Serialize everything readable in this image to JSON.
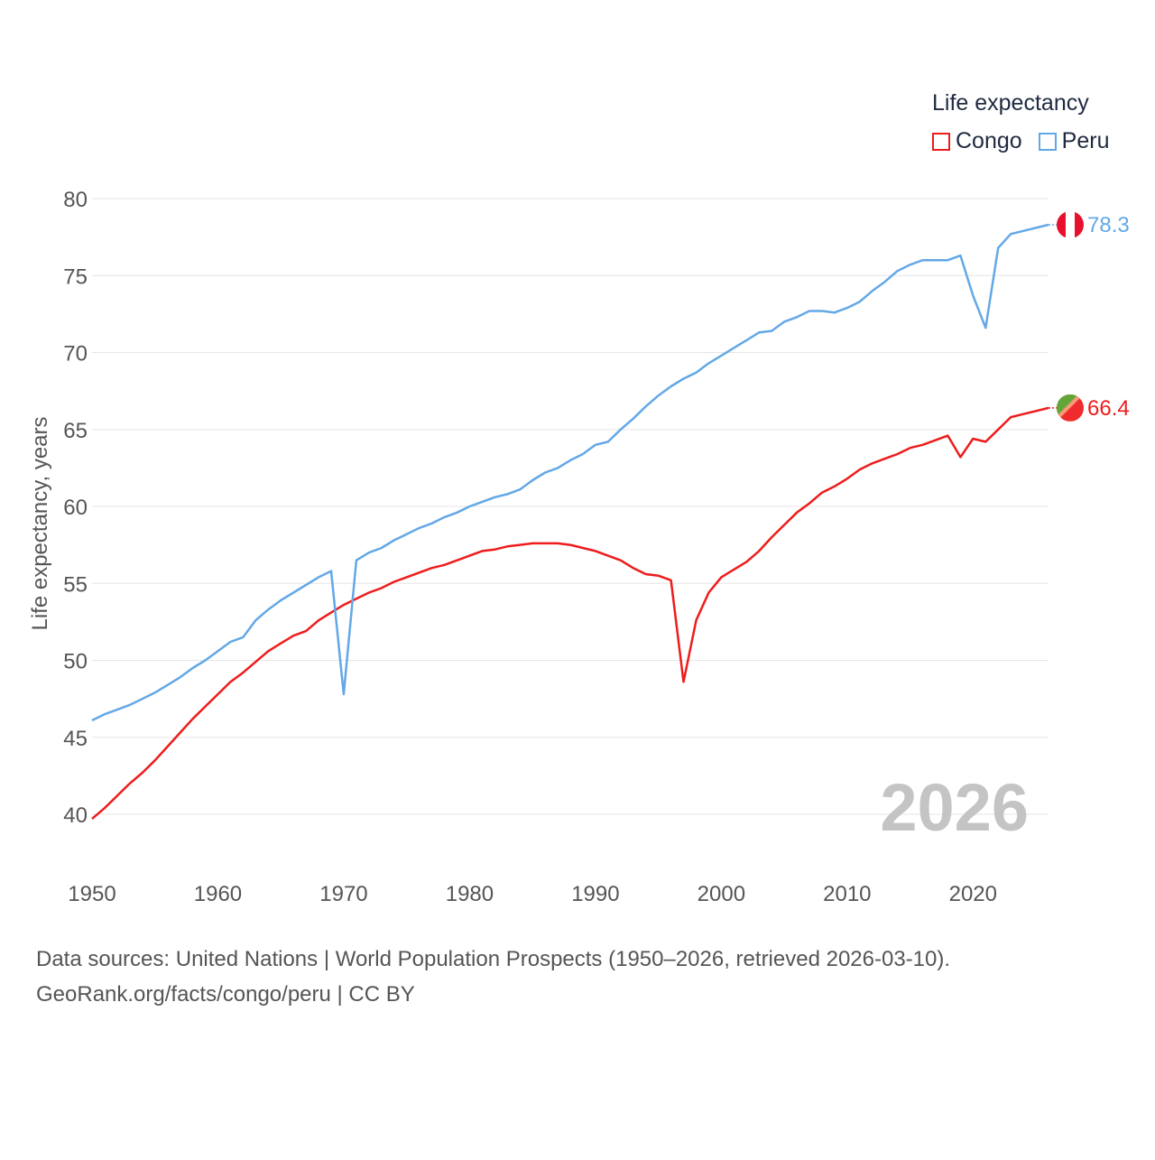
{
  "chart_data": {
    "type": "line",
    "legend": {
      "title": "Life expectancy",
      "position": "top-right"
    },
    "ylabel": "Life expectancy, years",
    "xlabel": "",
    "ylim": [
      37.5,
      82
    ],
    "xlim": [
      1950,
      2026
    ],
    "y_ticks": [
      40,
      45,
      50,
      55,
      60,
      65,
      70,
      75,
      80
    ],
    "x_ticks": [
      1950,
      1960,
      1970,
      1980,
      1990,
      2000,
      2010,
      2020
    ],
    "grid": true,
    "watermark_year": "2026",
    "series": [
      {
        "name": "Congo",
        "color": "#ee1c1c",
        "end_label": "66.4",
        "flag": "congo-flag",
        "x": [
          1950,
          1951,
          1952,
          1953,
          1954,
          1955,
          1956,
          1957,
          1958,
          1959,
          1960,
          1961,
          1962,
          1963,
          1964,
          1965,
          1966,
          1967,
          1968,
          1969,
          1970,
          1971,
          1972,
          1973,
          1974,
          1975,
          1976,
          1977,
          1978,
          1979,
          1980,
          1981,
          1982,
          1983,
          1984,
          1985,
          1986,
          1987,
          1988,
          1989,
          1990,
          1991,
          1992,
          1993,
          1994,
          1995,
          1996,
          1997,
          1998,
          1999,
          2000,
          2001,
          2002,
          2003,
          2004,
          2005,
          2006,
          2007,
          2008,
          2009,
          2010,
          2011,
          2012,
          2013,
          2014,
          2015,
          2016,
          2017,
          2018,
          2019,
          2020,
          2021,
          2022,
          2023,
          2024,
          2025,
          2026
        ],
        "values": [
          39.7,
          40.4,
          41.2,
          42.0,
          42.7,
          43.5,
          44.4,
          45.3,
          46.2,
          47.0,
          47.8,
          48.6,
          49.2,
          49.9,
          50.6,
          51.1,
          51.6,
          51.9,
          52.6,
          53.1,
          53.6,
          54.0,
          54.4,
          54.7,
          55.1,
          55.4,
          55.7,
          56.0,
          56.2,
          56.5,
          56.8,
          57.1,
          57.2,
          57.4,
          57.5,
          57.6,
          57.6,
          57.6,
          57.5,
          57.3,
          57.1,
          56.8,
          56.5,
          56.0,
          55.6,
          55.5,
          55.2,
          48.6,
          52.6,
          54.4,
          55.4,
          55.9,
          56.4,
          57.1,
          58.0,
          58.8,
          59.6,
          60.2,
          60.9,
          61.3,
          61.8,
          62.4,
          62.8,
          63.1,
          63.4,
          63.8,
          64.0,
          64.3,
          64.6,
          63.2,
          64.4,
          64.2,
          65.0,
          65.8,
          66.0,
          66.2,
          66.4
        ]
      },
      {
        "name": "Peru",
        "color": "#63a8e6",
        "end_label": "78.3",
        "flag": "peru-flag",
        "x": [
          1950,
          1951,
          1952,
          1953,
          1954,
          1955,
          1956,
          1957,
          1958,
          1959,
          1960,
          1961,
          1962,
          1963,
          1964,
          1965,
          1966,
          1967,
          1968,
          1969,
          1970,
          1971,
          1972,
          1973,
          1974,
          1975,
          1976,
          1977,
          1978,
          1979,
          1980,
          1981,
          1982,
          1983,
          1984,
          1985,
          1986,
          1987,
          1988,
          1989,
          1990,
          1991,
          1992,
          1993,
          1994,
          1995,
          1996,
          1997,
          1998,
          1999,
          2000,
          2001,
          2002,
          2003,
          2004,
          2005,
          2006,
          2007,
          2008,
          2009,
          2010,
          2011,
          2012,
          2013,
          2014,
          2015,
          2016,
          2017,
          2018,
          2019,
          2020,
          2021,
          2022,
          2023,
          2024,
          2025,
          2026
        ],
        "values": [
          46.1,
          46.5,
          46.8,
          47.1,
          47.5,
          47.9,
          48.4,
          48.9,
          49.5,
          50.0,
          50.6,
          51.2,
          51.5,
          52.6,
          53.3,
          53.9,
          54.4,
          54.9,
          55.4,
          55.8,
          47.8,
          56.5,
          57.0,
          57.3,
          57.8,
          58.2,
          58.6,
          58.9,
          59.3,
          59.6,
          60.0,
          60.3,
          60.6,
          60.8,
          61.1,
          61.7,
          62.2,
          62.5,
          63.0,
          63.4,
          64.0,
          64.2,
          65.0,
          65.7,
          66.5,
          67.2,
          67.8,
          68.3,
          68.7,
          69.3,
          69.8,
          70.3,
          70.8,
          71.3,
          71.4,
          72.0,
          72.3,
          72.7,
          72.7,
          72.6,
          72.9,
          73.3,
          74.0,
          74.6,
          75.3,
          75.7,
          76.0,
          76.0,
          76.0,
          76.3,
          73.7,
          71.6,
          76.8,
          77.7,
          77.9,
          78.1,
          78.3
        ]
      }
    ]
  },
  "footer": {
    "sources_line": "Data sources: United Nations | World Population Prospects (1950–2026, retrieved 2026-03-10).",
    "license_line": "GeoRank.org/facts/congo/peru | CC BY"
  }
}
